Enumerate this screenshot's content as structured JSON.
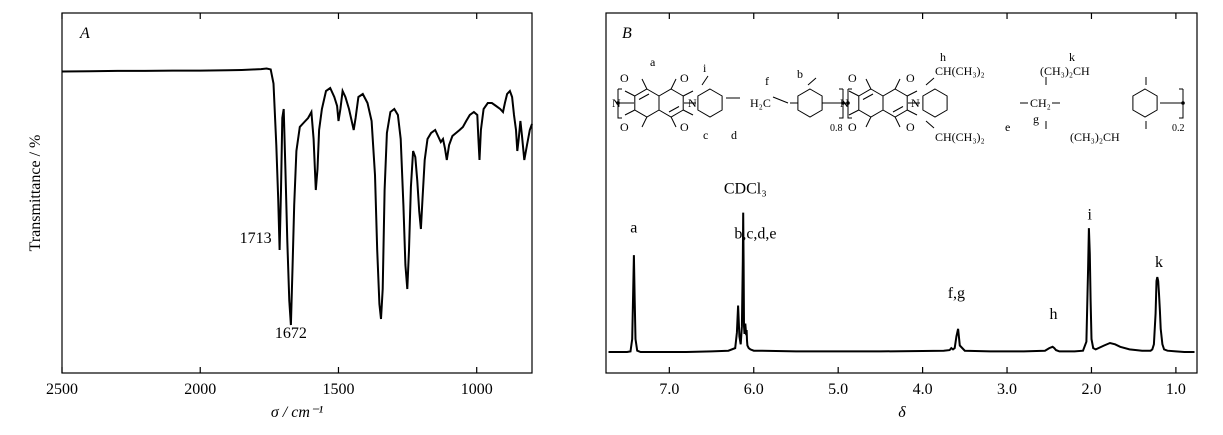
{
  "chart_data": [
    {
      "type": "line",
      "panel_label": "A",
      "xlabel": "σ / cm⁻¹",
      "ylabel": "Transmittance / %",
      "xlim": [
        2500,
        800
      ],
      "x_reversed": true,
      "ylim": [
        0,
        100
      ],
      "y_ticks_shown": false,
      "xticks": [
        2500,
        2000,
        1500,
        1000
      ],
      "tick_labels": [
        "2500",
        "2000",
        "1500",
        "1000"
      ],
      "annotations": [
        {
          "text": "1713",
          "x": 1713,
          "y": 42
        },
        {
          "text": "1672",
          "x": 1672,
          "y": 13
        }
      ],
      "series": [
        {
          "x": [
            2500,
            2400,
            2300,
            2200,
            2100,
            2000,
            1900,
            1850,
            1800,
            1780,
            1760,
            1745,
            1735,
            1725,
            1718,
            1713,
            1708,
            1703,
            1698,
            1692,
            1685,
            1678,
            1672,
            1666,
            1660,
            1652,
            1640,
            1625,
            1610,
            1598,
            1590,
            1582,
            1576,
            1570,
            1560,
            1545,
            1530,
            1515,
            1505,
            1500,
            1493,
            1485,
            1475,
            1462,
            1452,
            1445,
            1438,
            1428,
            1412,
            1395,
            1380,
            1368,
            1360,
            1352,
            1346,
            1340,
            1333,
            1325,
            1312,
            1298,
            1285,
            1275,
            1265,
            1258,
            1251,
            1245,
            1238,
            1230,
            1222,
            1215,
            1208,
            1202,
            1196,
            1188,
            1178,
            1165,
            1150,
            1140,
            1130,
            1122,
            1115,
            1108,
            1100,
            1088,
            1075,
            1062,
            1050,
            1038,
            1025,
            1010,
            998,
            994,
            990,
            985,
            975,
            960,
            945,
            930,
            915,
            905,
            898,
            890,
            880,
            872,
            865,
            858,
            853,
            848,
            842,
            836,
            828,
            818,
            808,
            800
          ],
          "y": [
            94.5,
            94.6,
            94.7,
            94.7,
            94.8,
            94.8,
            94.9,
            95.0,
            95.2,
            95.3,
            95.5,
            95.2,
            90.5,
            70,
            52,
            35,
            55,
            79,
            82,
            62,
            38,
            18,
            10,
            30,
            50,
            68,
            76,
            77.5,
            79,
            81,
            72,
            55,
            62,
            75,
            82,
            88,
            89,
            86,
            83,
            78,
            82,
            88,
            86,
            82,
            78,
            75,
            79,
            86,
            87,
            84,
            78,
            60,
            35,
            17,
            12,
            22,
            55,
            74,
            81,
            82,
            80,
            72,
            50,
            30,
            22,
            35,
            56,
            68,
            66,
            58,
            48,
            42,
            52,
            65,
            72,
            74,
            75,
            73,
            71,
            72,
            69,
            65,
            70,
            73,
            74,
            75,
            76,
            78,
            80,
            81,
            80,
            72,
            65,
            75,
            82,
            84,
            84,
            83,
            82,
            81,
            84,
            87,
            88,
            86,
            80,
            75,
            68,
            72,
            78,
            73,
            65,
            70,
            75,
            77
          ]
        }
      ]
    },
    {
      "type": "line",
      "panel_label": "B",
      "xlabel": "δ",
      "xlim": [
        7.75,
        0.75
      ],
      "x_reversed": true,
      "xticks": [
        7.0,
        6.0,
        5.0,
        4.0,
        3.0,
        2.0,
        1.0
      ],
      "tick_labels": [
        "7.0",
        "6.0",
        "5.0",
        "4.0",
        "3.0",
        "2.0",
        "1.0"
      ],
      "peak_labels": [
        {
          "text": "a",
          "x": 7.42,
          "y": 85
        },
        {
          "text": "CDCl₃",
          "x": 6.1,
          "y": 115
        },
        {
          "text": "b,c,d,e",
          "x": 5.98,
          "y": 80
        },
        {
          "text": "f,g",
          "x": 3.6,
          "y": 34
        },
        {
          "text": "h",
          "x": 2.45,
          "y": 18
        },
        {
          "text": "i",
          "x": 2.02,
          "y": 95
        },
        {
          "text": "k",
          "x": 1.2,
          "y": 58
        }
      ],
      "series": [
        {
          "x": [
            7.72,
            7.5,
            7.46,
            7.44,
            7.43,
            7.42,
            7.41,
            7.4,
            7.38,
            7.34,
            7.2,
            7.0,
            6.8,
            6.5,
            6.3,
            6.22,
            6.2,
            6.185,
            6.17,
            6.155,
            6.14,
            6.13,
            6.125,
            6.12,
            6.115,
            6.11,
            6.1,
            6.09,
            6.085,
            6.08,
            6.075,
            6.06,
            6.04,
            6.0,
            5.9,
            5.5,
            5.0,
            4.5,
            4.0,
            3.75,
            3.68,
            3.66,
            3.64,
            3.62,
            3.6,
            3.58,
            3.56,
            3.5,
            3.2,
            2.8,
            2.55,
            2.5,
            2.46,
            2.44,
            2.42,
            2.38,
            2.2,
            2.1,
            2.06,
            2.04,
            2.03,
            2.02,
            2.01,
            2.0,
            1.98,
            1.95,
            1.85,
            1.78,
            1.72,
            1.66,
            1.55,
            1.4,
            1.3,
            1.28,
            1.26,
            1.24,
            1.23,
            1.22,
            1.21,
            1.2,
            1.19,
            1.18,
            1.16,
            1.14,
            1.1,
            1.0,
            0.9,
            0.78
          ],
          "y": [
            0,
            0,
            0.5,
            10,
            40,
            75,
            40,
            10,
            1,
            0,
            0,
            0,
            0,
            0.5,
            1,
            3,
            15,
            36,
            12,
            6,
            20,
            70,
            108,
            70,
            20,
            14,
            22,
            13,
            17,
            9,
            5,
            3,
            2,
            1,
            1,
            0.5,
            0.5,
            0.5,
            0.8,
            1,
            1.5,
            3,
            2,
            3,
            12,
            18,
            5,
            1,
            0.5,
            0.5,
            1,
            3,
            4,
            3,
            1.5,
            0.5,
            0.5,
            1,
            8,
            65,
            96,
            76,
            40,
            10,
            3,
            2,
            5,
            7,
            6,
            4,
            2,
            1,
            1,
            2,
            6,
            30,
            55,
            58,
            55,
            45,
            32,
            18,
            6,
            2,
            1,
            0.5,
            0,
            0
          ]
        }
      ]
    }
  ],
  "structure": {
    "subscripts": [
      "0.8",
      "0.2"
    ],
    "groups": [
      "H₂C",
      "CH₂",
      "CH(CH₃)₂",
      "(CH₃)₂CH",
      "CH(CH₃)₂",
      "(CH₃)₂CH"
    ],
    "atom_labels": [
      "O",
      "O",
      "O",
      "O",
      "N",
      "N",
      "O",
      "O",
      "O",
      "O",
      "N",
      "N"
    ],
    "proton_labels": [
      "a",
      "i",
      "c",
      "d",
      "f",
      "b",
      "h",
      "k",
      "e",
      "g"
    ]
  }
}
